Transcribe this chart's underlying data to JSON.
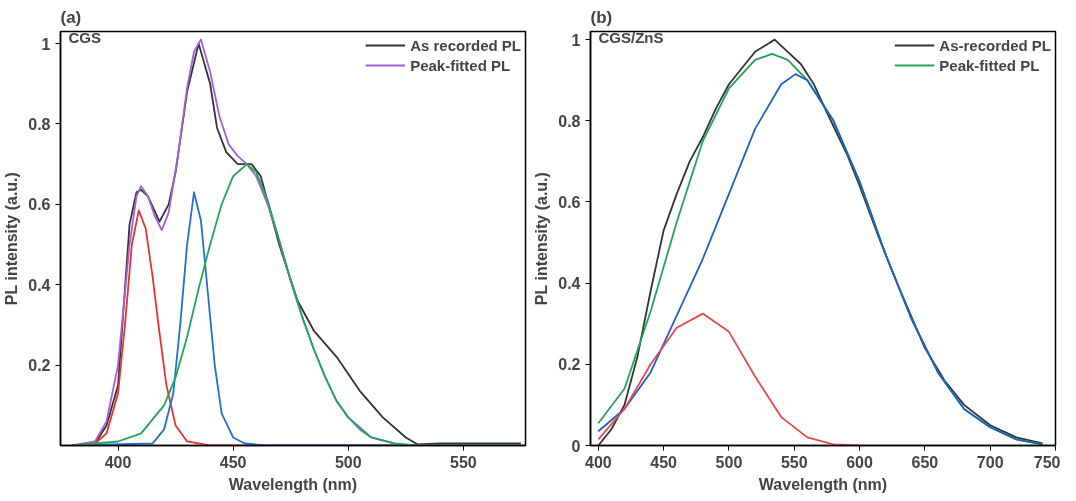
{
  "chart_data": [
    {
      "type": "line",
      "title": "(a)",
      "xlabel": "Wavelength (nm)",
      "ylabel": "PL intensity (a.u.)",
      "annotations": [
        "CGS"
      ],
      "xlim": [
        375,
        577
      ],
      "ylim": [
        0,
        1.03
      ],
      "xticks": [
        400,
        450,
        500,
        550
      ],
      "yticks": [
        0.2,
        0.4,
        0.6,
        0.8,
        1
      ],
      "grid": false,
      "legend": "top right",
      "marker": "none",
      "line_style": "solid",
      "series": [
        {
          "name": "As recorded PL",
          "color": "#333333",
          "x": [
            380,
            390,
            395,
            400,
            405,
            408,
            410,
            413,
            418,
            422,
            425,
            430,
            435,
            440,
            443,
            447,
            452,
            458,
            462,
            470,
            478,
            485,
            495,
            505,
            515,
            525,
            530,
            540,
            550,
            560,
            575
          ],
          "values": [
            0,
            0.005,
            0.05,
            0.15,
            0.55,
            0.63,
            0.636,
            0.62,
            0.557,
            0.6,
            0.68,
            0.88,
            1.0,
            0.9,
            0.79,
            0.73,
            0.7,
            0.7,
            0.67,
            0.5,
            0.36,
            0.286,
            0.22,
            0.136,
            0.07,
            0.02,
            0.003,
            0.005,
            0.005,
            0.005,
            0.005
          ]
        },
        {
          "name": "Peak-fitted PL",
          "color": "#a35fd8",
          "x": [
            380,
            390,
            395,
            400,
            405,
            408,
            410,
            413,
            416,
            419,
            422,
            426,
            430,
            433,
            436,
            440,
            444,
            448,
            452,
            456,
            460,
            465,
            470,
            475,
            480,
            485,
            490,
            495,
            500,
            505,
            510,
            520
          ],
          "values": [
            0,
            0.01,
            0.06,
            0.2,
            0.5,
            0.62,
            0.645,
            0.62,
            0.57,
            0.536,
            0.58,
            0.72,
            0.89,
            0.98,
            1.01,
            0.93,
            0.82,
            0.75,
            0.72,
            0.7,
            0.67,
            0.6,
            0.51,
            0.41,
            0.32,
            0.24,
            0.17,
            0.11,
            0.07,
            0.04,
            0.02,
            0.005
          ]
        },
        {
          "color": "#e8312f",
          "x": [
            380,
            390,
            395,
            400,
            403,
            406,
            409,
            412,
            415,
            418,
            421,
            425,
            430,
            440,
            575
          ],
          "values": [
            0,
            0.005,
            0.03,
            0.13,
            0.3,
            0.5,
            0.585,
            0.54,
            0.42,
            0.28,
            0.15,
            0.05,
            0.01,
            0,
            0
          ]
        },
        {
          "color": "#1f6fd6",
          "x": [
            380,
            415,
            420,
            424,
            427,
            430,
            433,
            436,
            439,
            442,
            445,
            450,
            455,
            465,
            575
          ],
          "values": [
            0,
            0.005,
            0.04,
            0.13,
            0.3,
            0.5,
            0.63,
            0.56,
            0.38,
            0.2,
            0.08,
            0.02,
            0.005,
            0,
            0
          ]
        },
        {
          "color": "#22a55a",
          "x": [
            380,
            400,
            410,
            420,
            425,
            430,
            435,
            440,
            445,
            450,
            456,
            460,
            465,
            470,
            475,
            480,
            485,
            490,
            495,
            500,
            510,
            520,
            530,
            575
          ],
          "values": [
            0,
            0.01,
            0.03,
            0.1,
            0.17,
            0.27,
            0.39,
            0.5,
            0.6,
            0.67,
            0.7,
            0.68,
            0.61,
            0.51,
            0.41,
            0.32,
            0.24,
            0.17,
            0.11,
            0.07,
            0.02,
            0.005,
            0,
            0
          ]
        }
      ]
    },
    {
      "type": "line",
      "title": "(b)",
      "xlabel": "Wavelength (nm)",
      "ylabel": "PL intensity (a.u.)",
      "annotations": [
        "CGS/ZnS"
      ],
      "xlim": [
        394,
        750
      ],
      "ylim": [
        0,
        1.02
      ],
      "xticks": [
        400,
        450,
        500,
        550,
        600,
        650,
        700,
        750
      ],
      "yticks": [
        0,
        0.2,
        0.4,
        0.6,
        0.8,
        1
      ],
      "grid": false,
      "legend": "top right",
      "marker": "none",
      "line_style": "solid",
      "series": [
        {
          "name": "As-recorded PL",
          "color": "#333333",
          "x": [
            400,
            410,
            420,
            430,
            440,
            450,
            460,
            470,
            480,
            490,
            500,
            510,
            520,
            530,
            535,
            545,
            555,
            565,
            575,
            590,
            600,
            615,
            630,
            650,
            665,
            680,
            700,
            720,
            740
          ],
          "values": [
            0,
            0.04,
            0.1,
            0.22,
            0.38,
            0.53,
            0.62,
            0.7,
            0.76,
            0.83,
            0.89,
            0.93,
            0.97,
            0.99,
            1.0,
            0.97,
            0.94,
            0.89,
            0.82,
            0.72,
            0.64,
            0.51,
            0.39,
            0.24,
            0.16,
            0.1,
            0.05,
            0.02,
            0.005
          ]
        },
        {
          "name": "Peak-fitted PL",
          "color": "#22a55a",
          "x": [
            400,
            420,
            440,
            460,
            480,
            500,
            520,
            533,
            545,
            560,
            580,
            600,
            620,
            640,
            660,
            680,
            700,
            720,
            740
          ],
          "values": [
            0.055,
            0.14,
            0.33,
            0.55,
            0.75,
            0.88,
            0.95,
            0.965,
            0.95,
            0.9,
            0.8,
            0.65,
            0.47,
            0.31,
            0.18,
            0.09,
            0.045,
            0.015,
            0.003
          ]
        },
        {
          "color": "#1f5fc8",
          "x": [
            400,
            420,
            440,
            460,
            480,
            500,
            520,
            540,
            551,
            560,
            580,
            600,
            620,
            640,
            660,
            680,
            700,
            720,
            740
          ],
          "values": [
            0.035,
            0.09,
            0.18,
            0.32,
            0.46,
            0.62,
            0.78,
            0.89,
            0.915,
            0.9,
            0.8,
            0.65,
            0.47,
            0.31,
            0.18,
            0.09,
            0.045,
            0.015,
            0.003
          ]
        },
        {
          "color": "#e84a4a",
          "x": [
            400,
            420,
            440,
            460,
            480,
            500,
            520,
            540,
            560,
            580,
            600
          ],
          "values": [
            0.015,
            0.09,
            0.2,
            0.29,
            0.325,
            0.28,
            0.17,
            0.07,
            0.02,
            0.003,
            0
          ]
        }
      ]
    }
  ]
}
